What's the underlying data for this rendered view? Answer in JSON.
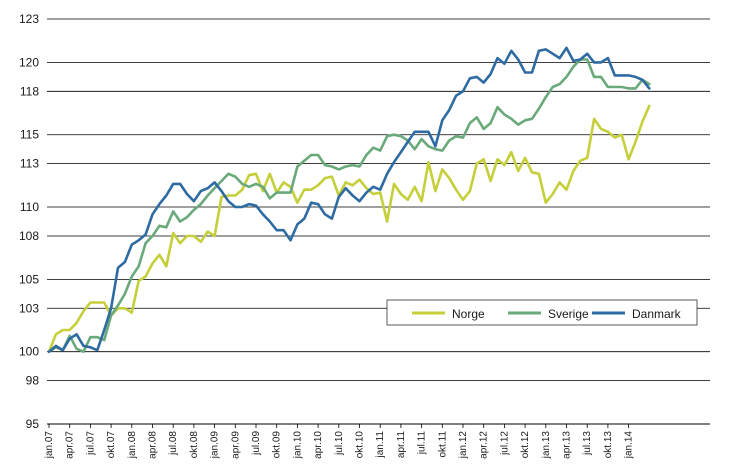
{
  "chart_data": {
    "type": "line",
    "title": "",
    "xlabel": "",
    "ylabel": "",
    "ylim": [
      95,
      123
    ],
    "yticks": [
      95,
      98,
      100,
      103,
      105,
      108,
      110,
      113,
      115,
      118,
      120,
      123
    ],
    "grid": "horizontal",
    "legend": "right, lower-middle",
    "x": [
      "jan.07",
      "feb.07",
      "mar.07",
      "apr.07",
      "mai.07",
      "jun.07",
      "jul.07",
      "aug.07",
      "sep.07",
      "okt.07",
      "nov.07",
      "des.07",
      "jan.08",
      "feb.08",
      "mar.08",
      "apr.08",
      "mai.08",
      "jun.08",
      "jul.08",
      "aug.08",
      "sep.08",
      "okt.08",
      "nov.08",
      "des.08",
      "jan.09",
      "feb.09",
      "mar.09",
      "apr.09",
      "mai.09",
      "jun.09",
      "jul.09",
      "aug.09",
      "sep.09",
      "okt.09",
      "nov.09",
      "des.09",
      "jan.10",
      "feb.10",
      "mar.10",
      "apr.10",
      "mai.10",
      "jun.10",
      "jul.10",
      "aug.10",
      "sep.10",
      "okt.10",
      "nov.10",
      "des.10",
      "jan.11",
      "feb.11",
      "mar.11",
      "apr.11",
      "mai.11",
      "jun.11",
      "jul.11",
      "aug.11",
      "sep.11",
      "okt.11",
      "nov.11",
      "des.11",
      "jan.12",
      "feb.12",
      "mar.12",
      "apr.12",
      "mai.12",
      "jun.12",
      "jul.12",
      "aug.12",
      "sep.12",
      "okt.12",
      "nov.12",
      "des.12",
      "jan.13",
      "feb.13",
      "mar.13",
      "apr.13",
      "mai.13",
      "jun.13",
      "jul.13",
      "aug.13",
      "sep.13",
      "okt.13",
      "nov.13",
      "des.13",
      "jan.14",
      "feb.14",
      "mar.14",
      "apr.14"
    ],
    "xtick_labels": [
      "jan.07",
      "apr.07",
      "jul.07",
      "okt.07",
      "jan.08",
      "apr.08",
      "jul.08",
      "okt.08",
      "jan.09",
      "apr.09",
      "jul.09",
      "okt.09",
      "jan.10",
      "apr.10",
      "jul.10",
      "okt.10",
      "jan.11",
      "apr.11",
      "jul.11",
      "okt.11",
      "jan.12",
      "apr.12",
      "jul.12",
      "okt.12",
      "jan.13",
      "apr.13",
      "jul.13",
      "okt.13",
      "jan.14"
    ],
    "series": [
      {
        "name": "Norge",
        "color": "#c5cf3a",
        "values": [
          100.0,
          101.2,
          101.5,
          101.5,
          102.0,
          102.8,
          103.4,
          103.4,
          103.4,
          102.5,
          103.0,
          103.0,
          102.7,
          104.9,
          105.2,
          106.1,
          106.7,
          105.9,
          108.2,
          107.5,
          108.0,
          108.0,
          107.6,
          108.3,
          108.0,
          110.7,
          110.8,
          110.8,
          111.2,
          112.2,
          112.3,
          111.1,
          112.3,
          111.0,
          111.7,
          111.4,
          110.3,
          111.2,
          111.2,
          111.5,
          112.0,
          112.1,
          110.8,
          111.7,
          111.5,
          111.9,
          111.3,
          110.9,
          111.0,
          109.0,
          111.6,
          110.9,
          110.5,
          111.4,
          110.4,
          113.1,
          111.1,
          112.6,
          112.0,
          111.2,
          110.5,
          111.1,
          113.0,
          113.3,
          111.8,
          113.3,
          112.9,
          113.8,
          112.5,
          113.4,
          112.4,
          112.3,
          110.3,
          110.9,
          111.7,
          111.2,
          112.5,
          113.2,
          113.4,
          116.1,
          115.4,
          115.2,
          114.8,
          115.0,
          113.3,
          114.5,
          115.9,
          117.0
        ]
      },
      {
        "name": "Sverige",
        "color": "#6aa97a",
        "values": [
          100.0,
          100.3,
          100.1,
          101.1,
          100.2,
          100.0,
          101.0,
          101.0,
          100.8,
          102.5,
          103.2,
          104.0,
          105.2,
          105.9,
          107.5,
          108.0,
          108.7,
          108.6,
          109.7,
          109.0,
          109.3,
          109.8,
          110.2,
          110.8,
          111.3,
          111.8,
          112.3,
          112.1,
          111.6,
          111.4,
          111.6,
          111.4,
          110.6,
          111.0,
          111.0,
          111.0,
          112.8,
          113.2,
          113.6,
          113.6,
          112.9,
          112.8,
          112.6,
          112.8,
          112.9,
          112.8,
          113.6,
          114.1,
          113.9,
          114.9,
          115.0,
          114.9,
          114.6,
          114.0,
          114.7,
          114.2,
          114.0,
          113.9,
          114.6,
          114.9,
          114.8,
          115.8,
          116.2,
          115.4,
          115.8,
          116.9,
          116.4,
          116.1,
          115.7,
          116.0,
          116.1,
          116.8,
          117.6,
          118.3,
          118.5,
          119.0,
          119.7,
          120.2,
          120.2,
          119.0,
          119.0,
          118.3,
          118.3,
          118.3,
          118.2,
          118.2,
          118.8,
          118.5
        ]
      },
      {
        "name": "Danmark",
        "color": "#2e6ba3",
        "values": [
          100.0,
          100.4,
          100.1,
          100.9,
          101.2,
          100.4,
          100.3,
          100.1,
          101.5,
          103.0,
          105.8,
          106.2,
          107.4,
          107.7,
          108.1,
          109.5,
          110.2,
          110.8,
          111.6,
          111.6,
          110.9,
          110.4,
          111.1,
          111.3,
          111.7,
          111.1,
          110.4,
          110.0,
          110.0,
          110.2,
          110.1,
          109.5,
          109.0,
          108.4,
          108.4,
          107.7,
          108.8,
          109.2,
          110.3,
          110.2,
          109.5,
          109.2,
          110.7,
          111.3,
          110.8,
          110.4,
          111.0,
          111.4,
          111.2,
          112.3,
          113.1,
          113.8,
          114.5,
          115.2,
          115.2,
          115.2,
          114.2,
          116.0,
          116.7,
          117.7,
          118.0,
          118.9,
          119.0,
          118.6,
          119.2,
          120.3,
          119.9,
          120.8,
          120.2,
          119.3,
          119.3,
          120.8,
          120.9,
          120.6,
          120.3,
          121.0,
          120.1,
          120.2,
          120.6,
          120.0,
          120.0,
          120.3,
          119.1,
          119.1,
          119.1,
          119.0,
          118.8,
          118.2
        ]
      }
    ]
  }
}
